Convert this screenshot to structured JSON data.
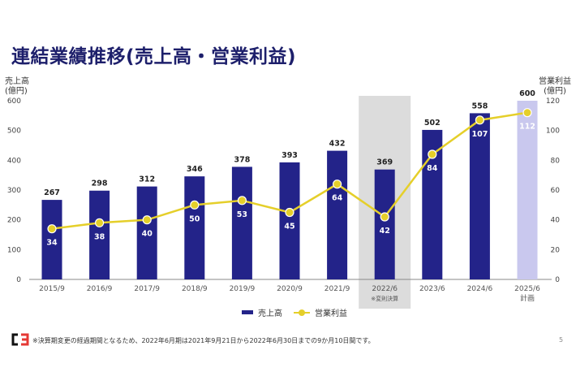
{
  "title": "連結業績推移(売上高・営業利益)",
  "left_axis_title": [
    "売上高",
    "(億円)"
  ],
  "right_axis_title": [
    "営業利益",
    "(億円)"
  ],
  "legend": {
    "bar": "売上高",
    "line": "営業利益"
  },
  "footnote": "※決算期変更の経過期間となるため、2022年6月期は2021年9月21日から2022年6月30日までの9か月10日間です。",
  "page_number": "5",
  "logo_text": "C3",
  "colors": {
    "bar": "#232389",
    "plan_bar": "#c9c8ee",
    "line": "#e5cf2a",
    "highlight": "#dcdcdc"
  },
  "chart_data": {
    "type": "bar",
    "categories": [
      "2015/9",
      "2016/9",
      "2017/9",
      "2018/9",
      "2019/9",
      "2020/9",
      "2021/9",
      "2022/6",
      "2023/6",
      "2024/6",
      "2025/6"
    ],
    "category_sublabels": [
      "",
      "",
      "",
      "",
      "",
      "",
      "",
      "※変則決算",
      "",
      "",
      "計画"
    ],
    "highlight_category": "2022/6",
    "plan_category": "2025/6",
    "series": [
      {
        "name": "売上高",
        "type": "bar",
        "axis": "left",
        "values": [
          267,
          298,
          312,
          346,
          378,
          393,
          432,
          369,
          502,
          558,
          600
        ]
      },
      {
        "name": "営業利益",
        "type": "line",
        "axis": "right",
        "values": [
          34,
          38,
          40,
          50,
          53,
          45,
          64,
          42,
          84,
          107,
          112
        ]
      }
    ],
    "left_axis": {
      "min": 0,
      "max": 600,
      "ticks": [
        0,
        100,
        200,
        300,
        400,
        500,
        600
      ]
    },
    "right_axis": {
      "min": 0,
      "max": 120,
      "ticks": [
        0,
        20,
        40,
        60,
        80,
        100,
        120
      ]
    },
    "grid": false,
    "legend_position": "bottom"
  }
}
